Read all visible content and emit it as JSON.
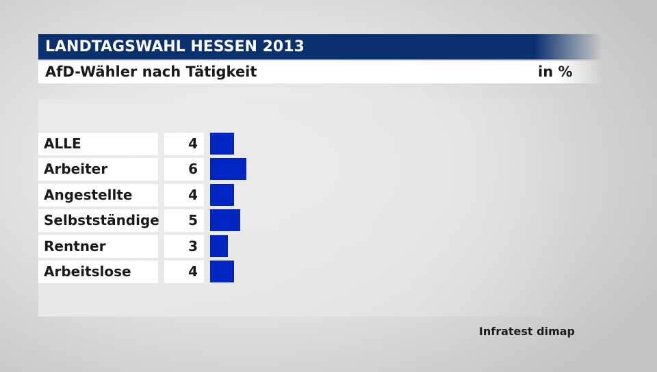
{
  "header": {
    "title": "LANDTAGSWAHL HESSEN 2013"
  },
  "subheader": {
    "title": "AfD-Wähler nach Tätigkeit",
    "unit": "in %"
  },
  "source": "Infratest dimap",
  "colors": {
    "bar": "#0025c1",
    "header": "#0b3070"
  },
  "chart_data": {
    "type": "bar",
    "orientation": "horizontal",
    "categories": [
      "ALLE",
      "Arbeiter",
      "Angestellte",
      "Selbstständige",
      "Rentner",
      "Arbeitslose"
    ],
    "values": [
      4,
      6,
      4,
      5,
      3,
      4
    ],
    "title": "AfD-Wähler nach Tätigkeit",
    "unit": "in %",
    "value_labels": [
      "4",
      "6",
      "4",
      "5",
      "3",
      "4"
    ]
  }
}
